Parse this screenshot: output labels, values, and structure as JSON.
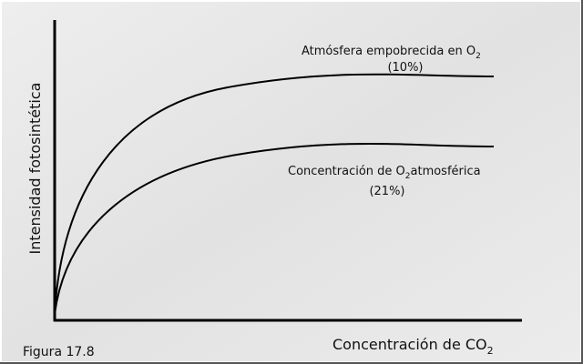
{
  "axes": {
    "y_label": "Intensidad fotosintética",
    "x_label": {
      "text": "Concentración de CO",
      "sub": "2"
    }
  },
  "curves": [
    {
      "label": {
        "text": "Atmósfera empobrecida en O",
        "sub": "2"
      },
      "note": "(10%)"
    },
    {
      "label": {
        "text": "Concentración de O",
        "sub": "2",
        "rest": "atmosférica"
      },
      "note": "(21%)"
    }
  ],
  "caption": "Figura 17.8"
}
